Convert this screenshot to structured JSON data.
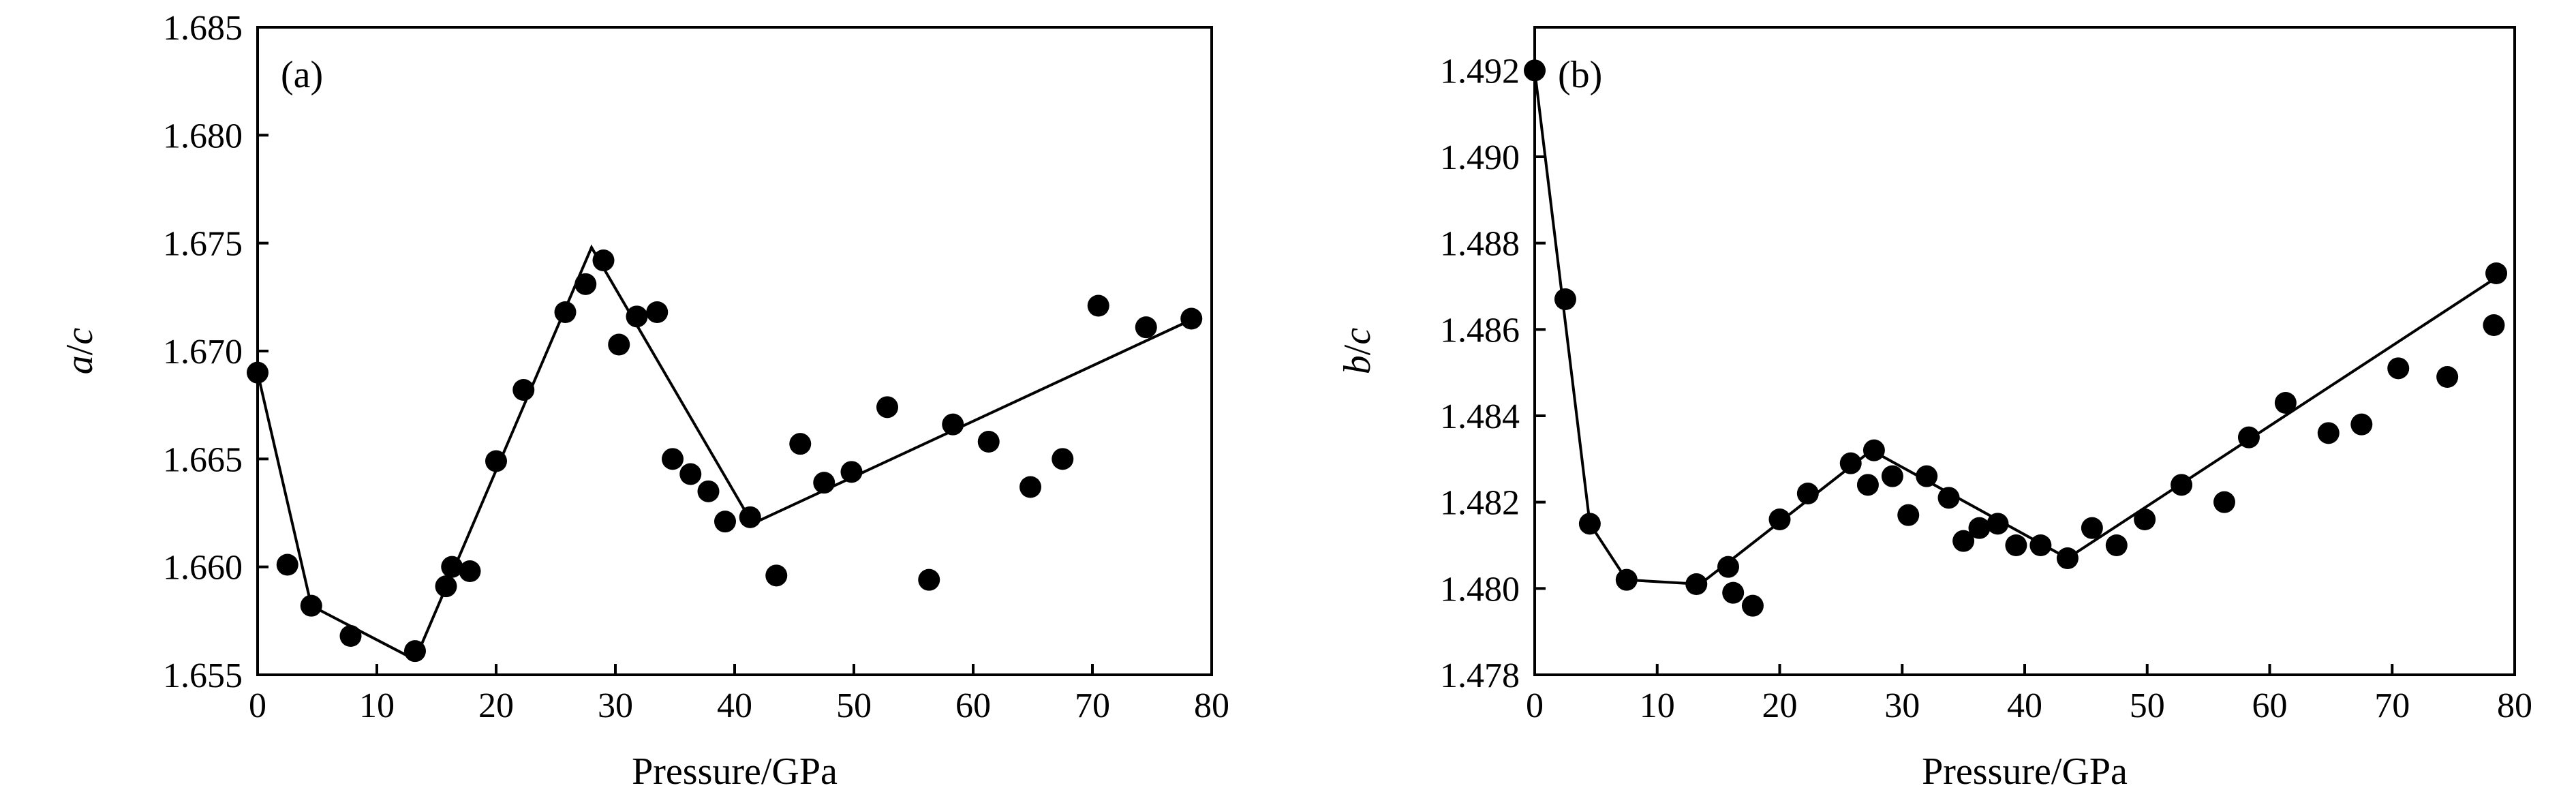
{
  "chart_data": [
    {
      "type": "scatter",
      "panel_label": "(a)",
      "xlabel": "Pressure/GPa",
      "ylabel_parts": [
        "a",
        "/",
        "c"
      ],
      "xlim": [
        0,
        80
      ],
      "ylim": [
        1.655,
        1.685
      ],
      "x_ticks": [
        0,
        10,
        20,
        30,
        40,
        50,
        60,
        70,
        80
      ],
      "y_ticks": [
        "1.655",
        "1.660",
        "1.665",
        "1.670",
        "1.675",
        "1.680",
        "1.685"
      ],
      "points": [
        [
          0,
          1.669
        ],
        [
          2.5,
          1.6601
        ],
        [
          4.5,
          1.6582
        ],
        [
          7.8,
          1.6568
        ],
        [
          13.2,
          1.6561
        ],
        [
          15.8,
          1.6591
        ],
        [
          16.3,
          1.66
        ],
        [
          17.8,
          1.6598
        ],
        [
          20,
          1.6649
        ],
        [
          22.3,
          1.6682
        ],
        [
          25.8,
          1.6718
        ],
        [
          27.5,
          1.6731
        ],
        [
          29,
          1.6742
        ],
        [
          30.3,
          1.6703
        ],
        [
          31.8,
          1.6716
        ],
        [
          33.5,
          1.6718
        ],
        [
          34.8,
          1.665
        ],
        [
          36.3,
          1.6643
        ],
        [
          37.8,
          1.6635
        ],
        [
          39.2,
          1.6621
        ],
        [
          41.3,
          1.6623
        ],
        [
          43.5,
          1.6596
        ],
        [
          45.5,
          1.6657
        ],
        [
          47.5,
          1.6639
        ],
        [
          49.8,
          1.6644
        ],
        [
          52.8,
          1.6674
        ],
        [
          56.3,
          1.6594
        ],
        [
          58.3,
          1.6666
        ],
        [
          61.3,
          1.6658
        ],
        [
          64.8,
          1.6637
        ],
        [
          67.5,
          1.665
        ],
        [
          70.5,
          1.6721
        ],
        [
          74.5,
          1.6711
        ],
        [
          78.3,
          1.6715
        ]
      ],
      "fit_line": [
        [
          0,
          1.669
        ],
        [
          4.5,
          1.6582
        ],
        [
          13.2,
          1.6557
        ],
        [
          28,
          1.6748
        ],
        [
          41.5,
          1.662
        ],
        [
          78.5,
          1.6715
        ]
      ]
    },
    {
      "type": "scatter",
      "panel_label": "(b)",
      "xlabel": "Pressure/GPa",
      "ylabel_parts": [
        "b",
        "/",
        "c"
      ],
      "xlim": [
        0,
        80
      ],
      "ylim": [
        1.478,
        1.493
      ],
      "x_ticks": [
        0,
        10,
        20,
        30,
        40,
        50,
        60,
        70,
        80
      ],
      "y_ticks": [
        "1.478",
        "1.480",
        "1.482",
        "1.484",
        "1.486",
        "1.488",
        "1.490",
        "1.492"
      ],
      "points": [
        [
          0,
          1.492
        ],
        [
          2.5,
          1.4867
        ],
        [
          4.5,
          1.4815
        ],
        [
          7.5,
          1.4802
        ],
        [
          13.2,
          1.4801
        ],
        [
          15.8,
          1.4805
        ],
        [
          16.2,
          1.4799
        ],
        [
          17.8,
          1.4796
        ],
        [
          20,
          1.4816
        ],
        [
          22.3,
          1.4822
        ],
        [
          25.8,
          1.4829
        ],
        [
          27.2,
          1.4824
        ],
        [
          27.7,
          1.4832
        ],
        [
          29.2,
          1.4826
        ],
        [
          30.5,
          1.4817
        ],
        [
          32,
          1.4826
        ],
        [
          33.8,
          1.4821
        ],
        [
          35,
          1.4811
        ],
        [
          36.3,
          1.4814
        ],
        [
          37.8,
          1.4815
        ],
        [
          39.3,
          1.481
        ],
        [
          41.3,
          1.481
        ],
        [
          43.5,
          1.4807
        ],
        [
          45.5,
          1.4814
        ],
        [
          47.5,
          1.481
        ],
        [
          49.8,
          1.4816
        ],
        [
          52.8,
          1.4824
        ],
        [
          56.3,
          1.482
        ],
        [
          58.3,
          1.4835
        ],
        [
          61.3,
          1.4843
        ],
        [
          64.8,
          1.4836
        ],
        [
          67.5,
          1.4838
        ],
        [
          70.5,
          1.4851
        ],
        [
          74.5,
          1.4849
        ],
        [
          78.3,
          1.4861
        ],
        [
          78.5,
          1.4873
        ]
      ],
      "fit_line": [
        [
          0,
          1.492
        ],
        [
          4.5,
          1.4815
        ],
        [
          7.5,
          1.4802
        ],
        [
          13.5,
          1.4801
        ],
        [
          27.5,
          1.4832
        ],
        [
          43.5,
          1.4807
        ],
        [
          78.5,
          1.4872
        ]
      ]
    }
  ]
}
